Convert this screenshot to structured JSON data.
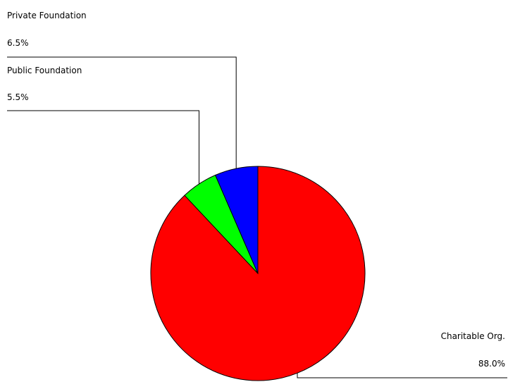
{
  "chart_data": {
    "type": "pie",
    "title": "",
    "legend": "none",
    "slices": [
      {
        "label": "Charitable Org.",
        "value": 88.0,
        "value_label": "88.0%",
        "color": "#ff0000"
      },
      {
        "label": "Public Foundation",
        "value": 5.5,
        "value_label": "5.5%",
        "color": "#00ff00"
      },
      {
        "label": "Private Foundation",
        "value": 6.5,
        "value_label": "6.5%",
        "color": "#0000ff"
      }
    ]
  }
}
